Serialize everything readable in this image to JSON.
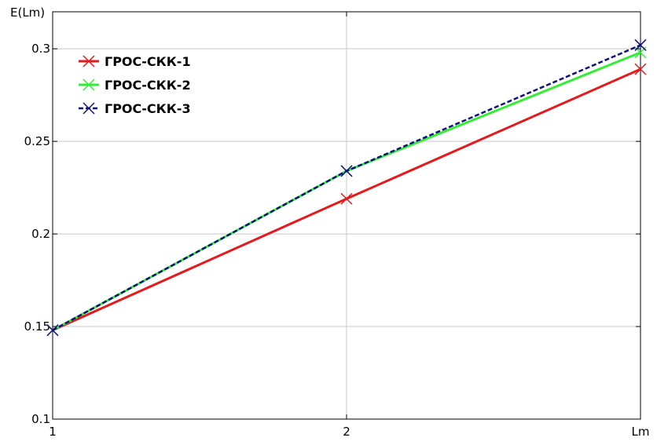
{
  "chart_data": {
    "type": "line",
    "x": [
      1,
      2,
      3
    ],
    "x_tick_labels": [
      "1",
      "2",
      "Lm"
    ],
    "ylabel": "E(Lm)",
    "xlim": [
      1,
      3
    ],
    "ylim": [
      0.1,
      0.32
    ],
    "y_ticks": [
      0.1,
      0.15,
      0.2,
      0.25,
      0.3
    ],
    "y_tick_labels": [
      "0.1",
      "0.15",
      "0.2",
      "0.25",
      "0.3"
    ],
    "grid": "horizontal",
    "legend_position": "top-left",
    "series": [
      {
        "name": "ГРОС-СКК-1",
        "values": [
          0.148,
          0.219,
          0.289
        ],
        "color": "#e41a1c",
        "marker": "x",
        "linestyle": "solid"
      },
      {
        "name": "ГРОС-СКК-2",
        "values": [
          0.148,
          0.234,
          0.298
        ],
        "color": "#33ee33",
        "marker": "x",
        "linestyle": "solid"
      },
      {
        "name": "ГРОС-СКК-3",
        "values": [
          0.148,
          0.234,
          0.302
        ],
        "color": "#101080",
        "marker": "x",
        "linestyle": "dashed"
      }
    ]
  }
}
